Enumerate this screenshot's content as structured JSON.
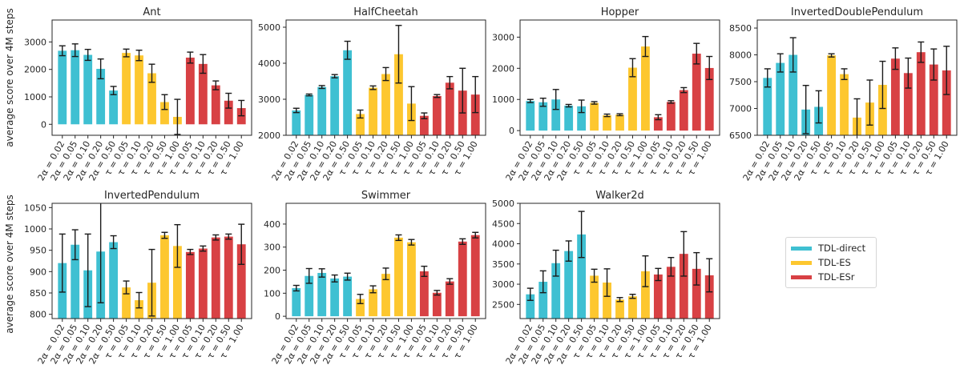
{
  "figure": {
    "ylabel": "average score over 4M steps",
    "legend": {
      "placement": "right, third column, second row",
      "items": [
        {
          "label": "TDL-direct",
          "color": "#3fc0d2"
        },
        {
          "label": "TDL-ES",
          "color": "#fdc72f"
        },
        {
          "label": "TDL-ESr",
          "color": "#d84144"
        }
      ]
    }
  },
  "categories": [
    "2α = 0.02",
    "2α = 0.05",
    "2α = 0.10",
    "2α = 0.20",
    "2α = 0.50",
    "τ = 0.05",
    "τ = 0.10",
    "τ = 0.20",
    "τ = 0.50",
    "τ = 1.00",
    "τ = 0.05",
    "τ = 0.10",
    "τ = 0.20",
    "τ = 0.50",
    "τ = 1.00"
  ],
  "colors": {
    "direct": "#3fc0d2",
    "es": "#fdc72f",
    "esr": "#d84144",
    "error": "#1a1a1a"
  },
  "chart_data": [
    {
      "type": "bar",
      "title": "Ant",
      "ylabel": "average score over 4M steps",
      "ylim": [
        -400,
        3800
      ],
      "yticks": [
        0,
        1000,
        2000,
        3000
      ],
      "grid": false,
      "series": [
        {
          "name": "TDL-direct",
          "values": [
            2680,
            2700,
            2530,
            2020,
            1230
          ],
          "errors": [
            180,
            230,
            200,
            360,
            150
          ]
        },
        {
          "name": "TDL-ES",
          "values": [
            2600,
            2510,
            1860,
            810,
            270
          ],
          "errors": [
            140,
            190,
            330,
            270,
            640
          ]
        },
        {
          "name": "TDL-ESr",
          "values": [
            2430,
            2200,
            1420,
            860,
            590
          ],
          "errors": [
            200,
            340,
            160,
            270,
            280
          ]
        }
      ]
    },
    {
      "type": "bar",
      "title": "HalfCheetah",
      "ylim": [
        2000,
        5200
      ],
      "yticks": [
        2000,
        3000,
        4000,
        5000
      ],
      "grid": false,
      "series": [
        {
          "name": "TDL-direct",
          "values": [
            2690,
            3120,
            3340,
            3640,
            4360
          ],
          "errors": [
            60,
            25,
            40,
            45,
            250
          ]
        },
        {
          "name": "TDL-ES",
          "values": [
            2590,
            3320,
            3700,
            4250,
            2880
          ],
          "errors": [
            110,
            50,
            180,
            800,
            470
          ]
        },
        {
          "name": "TDL-ESr",
          "values": [
            2540,
            3090,
            3460,
            3240,
            3130
          ],
          "errors": [
            80,
            40,
            170,
            620,
            500
          ]
        }
      ]
    },
    {
      "type": "bar",
      "title": "Hopper",
      "ylim": [
        -150,
        3550
      ],
      "yticks": [
        0,
        1000,
        2000,
        3000
      ],
      "grid": false,
      "series": [
        {
          "name": "TDL-direct",
          "values": [
            950,
            910,
            1000,
            800,
            780
          ],
          "errors": [
            50,
            130,
            320,
            40,
            200
          ]
        },
        {
          "name": "TDL-ES",
          "values": [
            890,
            490,
            510,
            2020,
            2700
          ],
          "errors": [
            40,
            40,
            30,
            290,
            320
          ]
        },
        {
          "name": "TDL-ESr",
          "values": [
            430,
            920,
            1300,
            2470,
            2010
          ],
          "errors": [
            80,
            40,
            80,
            330,
            370
          ]
        }
      ]
    },
    {
      "type": "bar",
      "title": "InvertedDoublePendulum",
      "ylim": [
        6500,
        8650
      ],
      "yticks": [
        6500,
        7000,
        7500,
        8000,
        8500
      ],
      "grid": false,
      "series": [
        {
          "name": "TDL-direct",
          "values": [
            7570,
            7850,
            8000,
            6980,
            7030
          ],
          "errors": [
            170,
            170,
            320,
            450,
            300
          ]
        },
        {
          "name": "TDL-ES",
          "values": [
            7990,
            7640,
            6830,
            7110,
            7440
          ],
          "errors": [
            30,
            100,
            350,
            420,
            440
          ]
        },
        {
          "name": "TDL-ESr",
          "values": [
            7930,
            7660,
            8050,
            7820,
            7710
          ],
          "errors": [
            200,
            280,
            190,
            290,
            450
          ]
        }
      ]
    },
    {
      "type": "bar",
      "title": "InvertedPendulum",
      "ylabel": "average score over 4M steps",
      "ylim": [
        790,
        1060
      ],
      "yticks": [
        800,
        850,
        900,
        950,
        1000,
        1050
      ],
      "grid": false,
      "series": [
        {
          "name": "TDL-direct",
          "values": [
            920,
            963,
            903,
            947,
            969
          ],
          "errors": [
            68,
            35,
            85,
            120,
            15
          ]
        },
        {
          "name": "TDL-ES",
          "values": [
            863,
            833,
            874,
            985,
            960
          ],
          "errors": [
            15,
            18,
            78,
            7,
            50
          ]
        },
        {
          "name": "TDL-ESr",
          "values": [
            946,
            954,
            980,
            982,
            964
          ],
          "errors": [
            6,
            6,
            6,
            6,
            47
          ]
        }
      ]
    },
    {
      "type": "bar",
      "title": "Swimmer",
      "ylim": [
        -10,
        490
      ],
      "yticks": [
        0,
        100,
        200,
        300,
        400
      ],
      "grid": false,
      "series": [
        {
          "name": "TDL-direct",
          "values": [
            122,
            175,
            188,
            164,
            172
          ],
          "errors": [
            12,
            32,
            18,
            15,
            15
          ]
        },
        {
          "name": "TDL-ES",
          "values": [
            75,
            117,
            184,
            341,
            321
          ],
          "errors": [
            20,
            15,
            25,
            12,
            12
          ]
        },
        {
          "name": "TDL-ESr",
          "values": [
            195,
            102,
            151,
            324,
            352
          ],
          "errors": [
            22,
            10,
            12,
            12,
            12
          ]
        }
      ]
    },
    {
      "type": "bar",
      "title": "Walker2d",
      "ylim": [
        2150,
        5000
      ],
      "yticks": [
        2500,
        3000,
        3500,
        4000,
        4500,
        5000
      ],
      "grid": false,
      "series": [
        {
          "name": "TDL-direct",
          "values": [
            2750,
            3060,
            3520,
            3820,
            4230
          ],
          "errors": [
            150,
            270,
            320,
            250,
            570
          ]
        },
        {
          "name": "TDL-ES",
          "values": [
            3210,
            3040,
            2620,
            2700,
            3320
          ],
          "errors": [
            160,
            340,
            50,
            50,
            380
          ]
        },
        {
          "name": "TDL-ESr",
          "values": [
            3240,
            3430,
            3750,
            3380,
            3220
          ],
          "errors": [
            150,
            230,
            550,
            400,
            410
          ]
        }
      ]
    }
  ]
}
